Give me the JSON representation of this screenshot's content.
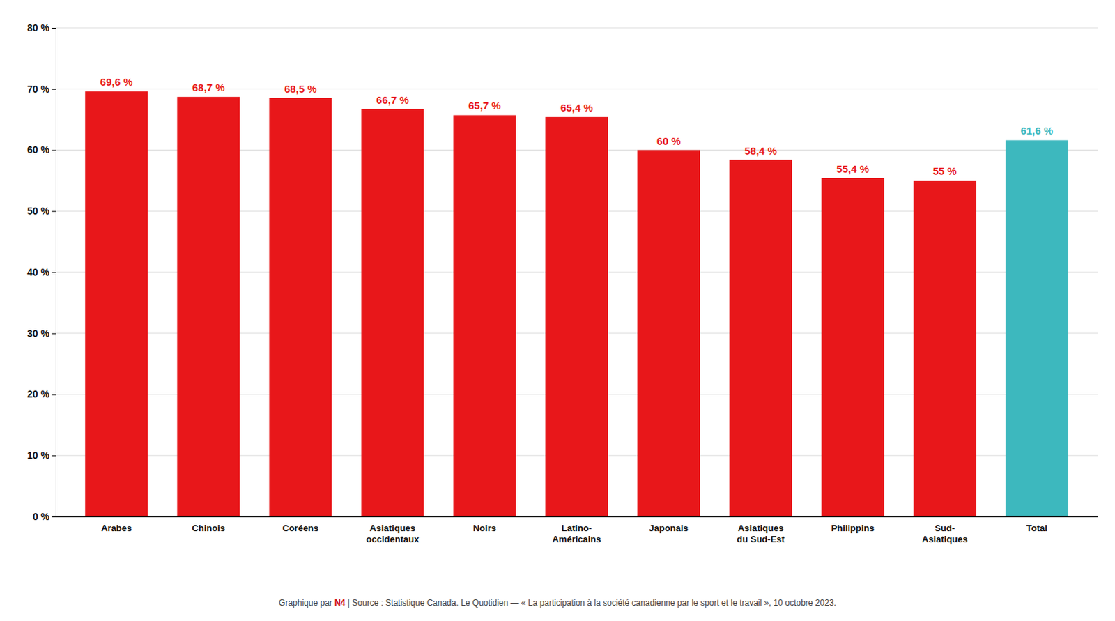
{
  "chart_data": {
    "type": "bar",
    "categories": [
      "Arabes",
      "Chinois",
      "Coréens",
      "Asiatiques\noccidentaux",
      "Noirs",
      "Latino-\nAméricains",
      "Japonais",
      "Asiatiques\ndu Sud-Est",
      "Philippins",
      "Sud-\nAsiatiques",
      "Total"
    ],
    "values": [
      69.6,
      68.7,
      68.5,
      66.7,
      65.7,
      65.4,
      60.0,
      58.4,
      55.4,
      55.0,
      61.6
    ],
    "value_labels": [
      "69,6 %",
      "68,7 %",
      "68,5 %",
      "66,7 %",
      "65,7 %",
      "65,4 %",
      "60 %",
      "58,4 %",
      "55,4 %",
      "55 %",
      "61,6 %"
    ],
    "colors": [
      "#e8171a",
      "#e8171a",
      "#e8171a",
      "#e8171a",
      "#e8171a",
      "#e8171a",
      "#e8171a",
      "#e8171a",
      "#e8171a",
      "#e8171a",
      "#3db8be"
    ],
    "data_labels": true,
    "ylim": [
      0,
      80
    ],
    "yticks": [
      {
        "value": 0,
        "label": "0 %"
      },
      {
        "value": 10,
        "label": "10 %"
      },
      {
        "value": 20,
        "label": "20 %"
      },
      {
        "value": 30,
        "label": "30 %"
      },
      {
        "value": 40,
        "label": "40 %"
      },
      {
        "value": 50,
        "label": "50 %"
      },
      {
        "value": 60,
        "label": "60 %"
      },
      {
        "value": 70,
        "label": "70 %"
      },
      {
        "value": 80,
        "label": "80 %"
      }
    ],
    "grid": true,
    "annotations": [
      {
        "text": "Graphique par ",
        "color": "#444444"
      },
      {
        "text": "N4",
        "color": "#cc0000"
      },
      {
        "text": " | Source : Statistique Canada. Le Quotidien — « La participation à la société canadienne par le sport et le travail », 10 octobre 2023.",
        "color": "#444444"
      }
    ]
  }
}
